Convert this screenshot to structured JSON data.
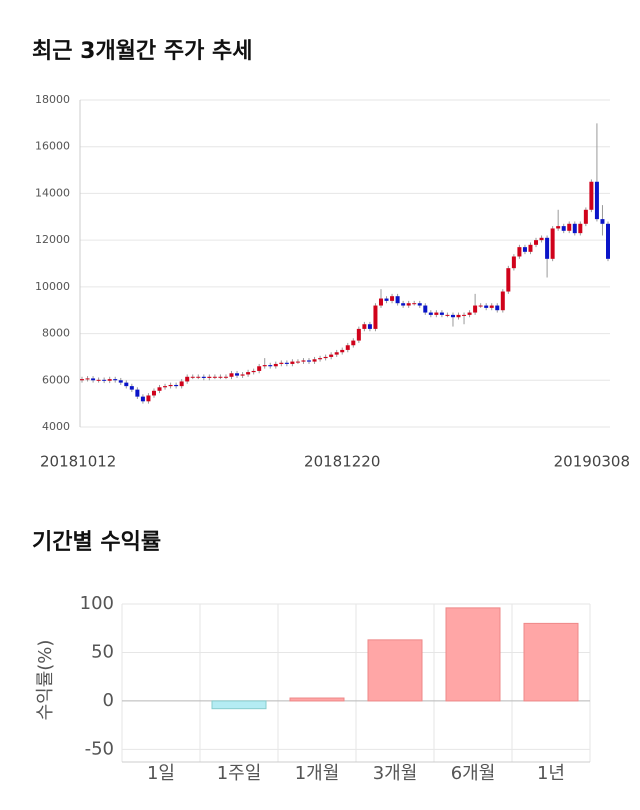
{
  "chart_data": [
    {
      "type": "candlestick",
      "title": "최근 3개월간 주가 추세",
      "categories": [
        "20181012",
        null,
        null,
        null,
        null,
        null,
        null,
        null,
        null,
        null,
        null,
        null,
        null,
        null,
        null,
        null,
        null,
        null,
        null,
        null,
        null,
        null,
        null,
        null,
        null,
        null,
        null,
        null,
        null,
        null,
        null,
        null,
        null,
        null,
        null,
        null,
        null,
        null,
        null,
        null,
        null,
        null,
        null,
        null,
        null,
        null,
        null,
        "20181220",
        null,
        null,
        null,
        null,
        null,
        null,
        null,
        null,
        null,
        null,
        null,
        null,
        null,
        null,
        null,
        null,
        null,
        null,
        null,
        null,
        null,
        null,
        null,
        null,
        null,
        null,
        null,
        null,
        null,
        null,
        null,
        null,
        null,
        null,
        null,
        null,
        null,
        null,
        null,
        null,
        null,
        null,
        null,
        null,
        null,
        null,
        null,
        "20190308"
      ],
      "open": [
        6000,
        6050,
        6080,
        6000,
        6020,
        5980,
        6050,
        6000,
        5900,
        5750,
        5600,
        5300,
        5100,
        5350,
        5550,
        5700,
        5750,
        5800,
        5750,
        5950,
        6150,
        6150,
        6150,
        6100,
        6150,
        6150,
        6150,
        6150,
        6300,
        6200,
        6250,
        6350,
        6400,
        6600,
        6650,
        6600,
        6700,
        6750,
        6700,
        6800,
        6800,
        6850,
        6800,
        6900,
        6950,
        7000,
        7100,
        7200,
        7300,
        7500,
        7700,
        8200,
        8400,
        8200,
        9200,
        9500,
        9400,
        9600,
        9300,
        9200,
        9300,
        9300,
        9200,
        8900,
        8800,
        8900,
        8800,
        8800,
        8700,
        8800,
        8800,
        8900,
        9200,
        9200,
        9100,
        9200,
        9000,
        9800,
        10800,
        11300,
        11700,
        11500,
        11800,
        12000,
        12100,
        11200,
        12500,
        12600,
        12400,
        12700,
        12300,
        12700,
        13300,
        14500,
        12900,
        12700
      ],
      "high": [
        6150,
        6180,
        6180,
        6120,
        6120,
        6150,
        6150,
        6100,
        6000,
        5850,
        5700,
        5400,
        5450,
        5650,
        5800,
        5850,
        5900,
        5900,
        6050,
        6250,
        6250,
        6250,
        6250,
        6250,
        6250,
        6250,
        6250,
        6400,
        6400,
        6350,
        6450,
        6500,
        6700,
        6950,
        6750,
        6800,
        6850,
        6850,
        6900,
        6900,
        6950,
        6950,
        7000,
        7050,
        7100,
        7200,
        7300,
        7400,
        7600,
        7800,
        8300,
        8500,
        8500,
        9300,
        9900,
        9600,
        9700,
        9700,
        9400,
        9400,
        9400,
        9400,
        9300,
        9000,
        9000,
        9000,
        8900,
        8900,
        8900,
        8900,
        9000,
        9700,
        9300,
        9300,
        9300,
        9300,
        9900,
        10900,
        11400,
        11800,
        11800,
        11900,
        12100,
        12200,
        12200,
        12600,
        13300,
        12700,
        12800,
        12800,
        12800,
        13400,
        14600,
        17000,
        13500,
        12800
      ],
      "low": [
        5900,
        5950,
        5900,
        5900,
        5880,
        5880,
        5900,
        5800,
        5650,
        5500,
        5200,
        5000,
        5000,
        5250,
        5450,
        5600,
        5650,
        5650,
        5650,
        5850,
        6050,
        6050,
        6000,
        6000,
        6050,
        6050,
        6050,
        6050,
        6100,
        6100,
        6150,
        6250,
        6300,
        6500,
        6500,
        6500,
        6600,
        6600,
        6600,
        6700,
        6700,
        6700,
        6700,
        6800,
        6850,
        6900,
        7000,
        7100,
        7200,
        7400,
        7600,
        8100,
        8100,
        8100,
        9100,
        9300,
        9300,
        9200,
        9100,
        9100,
        9200,
        9100,
        8800,
        8700,
        8700,
        8700,
        8700,
        8300,
        8600,
        8400,
        8700,
        8800,
        9100,
        9000,
        9000,
        8900,
        8900,
        9700,
        10700,
        11200,
        11400,
        11400,
        11700,
        11900,
        10400,
        11100,
        12400,
        12300,
        12300,
        12200,
        12200,
        12600,
        13200,
        12800,
        12200,
        11100
      ],
      "close": [
        6050,
        6080,
        6000,
        6020,
        5980,
        6050,
        6000,
        5900,
        5750,
        5600,
        5300,
        5100,
        5350,
        5550,
        5700,
        5750,
        5800,
        5750,
        5950,
        6150,
        6150,
        6150,
        6100,
        6150,
        6150,
        6150,
        6150,
        6300,
        6200,
        6250,
        6350,
        6400,
        6600,
        6650,
        6600,
        6700,
        6750,
        6700,
        6800,
        6800,
        6850,
        6800,
        6900,
        6950,
        7000,
        7100,
        7200,
        7300,
        7500,
        7700,
        8200,
        8400,
        8200,
        9200,
        9500,
        9400,
        9600,
        9300,
        9200,
        9300,
        9300,
        9200,
        8900,
        8800,
        8900,
        8800,
        8800,
        8700,
        8800,
        8800,
        8900,
        9200,
        9200,
        9100,
        9200,
        9000,
        9800,
        10800,
        11300,
        11700,
        11500,
        11800,
        12000,
        12100,
        11200,
        12500,
        12600,
        12400,
        12700,
        12300,
        12700,
        13300,
        14500,
        12900,
        12700,
        11200
      ],
      "up_color": "#d0021b",
      "down_color": "#0a14c8",
      "ylim": [
        4000,
        18000
      ],
      "yticks": [
        4000,
        6000,
        8000,
        10000,
        12000,
        14000,
        16000,
        18000
      ],
      "grid": true
    },
    {
      "type": "bar",
      "title": "기간별 수익률",
      "ylabel": "수익률(%)",
      "categories": [
        "1일",
        "1주일",
        "1개월",
        "3개월",
        "6개월",
        "1년"
      ],
      "values": [
        0,
        -8,
        3,
        63,
        96,
        80
      ],
      "positive_color": "#ffa6a6",
      "negative_color": "#b4ecf3",
      "ylim": [
        -63,
        100
      ],
      "yticks": [
        -50,
        0,
        50,
        100
      ],
      "grid": true
    }
  ]
}
